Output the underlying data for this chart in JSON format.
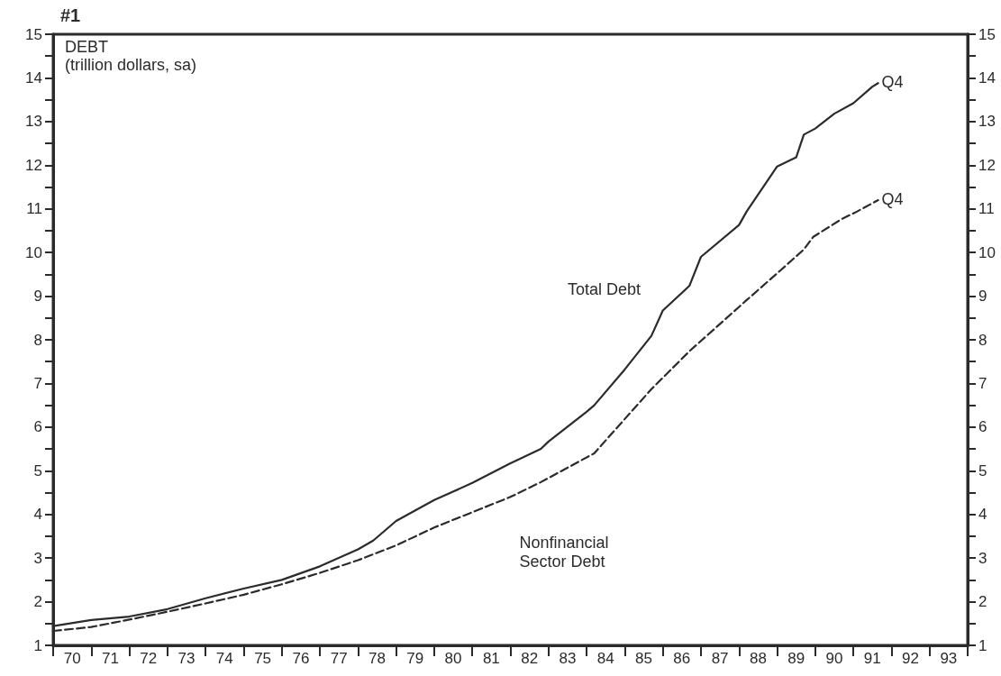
{
  "chart_data": {
    "type": "line",
    "title": "#1",
    "subtitle": "DEBT",
    "ylabel": "(trillion dollars, sa)",
    "series": [
      {
        "name": "Total Debt",
        "color": "#2b2b2b",
        "line_style": "solid",
        "x": [
          69.5,
          70.5,
          71.5,
          72.5,
          73.5,
          74.5,
          75.5,
          76.5,
          77.5,
          77.9,
          78.5,
          79.5,
          80.5,
          81.5,
          82.3,
          82.5,
          83.5,
          83.7,
          84.5,
          85.2,
          85.5,
          86.2,
          86.5,
          87.5,
          87.7,
          88.5,
          89.0,
          89.2,
          89.5,
          90.0,
          90.5,
          91.0,
          91.15
        ],
        "values": [
          1.44,
          1.58,
          1.66,
          1.83,
          2.08,
          2.3,
          2.5,
          2.81,
          3.2,
          3.4,
          3.85,
          4.33,
          4.72,
          5.17,
          5.5,
          5.67,
          6.35,
          6.5,
          7.32,
          8.09,
          8.67,
          9.24,
          9.9,
          10.63,
          10.94,
          11.97,
          12.18,
          12.7,
          12.84,
          13.18,
          13.42,
          13.8,
          13.88
        ]
      },
      {
        "name": "Nonfinancial\nSector Debt",
        "color": "#2b2b2b",
        "line_style": "dashed",
        "x": [
          69.5,
          70.5,
          71.5,
          72.5,
          73.5,
          74.5,
          75.5,
          76.5,
          77.5,
          78.5,
          79.5,
          80.5,
          81.5,
          82.3,
          83.7,
          85.2,
          86.2,
          87.7,
          88.6,
          89.2,
          89.45,
          90.2,
          90.6,
          91.15
        ],
        "values": [
          1.33,
          1.42,
          1.59,
          1.77,
          1.96,
          2.16,
          2.4,
          2.66,
          2.95,
          3.29,
          3.7,
          4.05,
          4.4,
          4.74,
          5.4,
          6.87,
          7.74,
          8.91,
          9.6,
          10.07,
          10.36,
          10.77,
          10.94,
          11.2
        ]
      }
    ],
    "annotations": [
      {
        "text": "Q4",
        "x": 91.15,
        "y": 13.88
      },
      {
        "text": "Q4",
        "x": 91.15,
        "y": 11.2
      }
    ],
    "xlim": [
      69.5,
      93.5
    ],
    "xticks": [
      {
        "value": 69.5,
        "label": null
      },
      70,
      {
        "value": 70.5,
        "label": null
      },
      71,
      {
        "value": 71.5,
        "label": null
      },
      72,
      {
        "value": 72.5,
        "label": null
      },
      73,
      {
        "value": 73.5,
        "label": null
      },
      74,
      {
        "value": 74.5,
        "label": null
      },
      75,
      {
        "value": 75.5,
        "label": null
      },
      76,
      {
        "value": 76.5,
        "label": null
      },
      77,
      {
        "value": 77.5,
        "label": null
      },
      78,
      {
        "value": 78.5,
        "label": null
      },
      79,
      {
        "value": 79.5,
        "label": null
      },
      80,
      {
        "value": 80.5,
        "label": null
      },
      81,
      {
        "value": 81.5,
        "label": null
      },
      82,
      {
        "value": 82.5,
        "label": null
      },
      83,
      {
        "value": 83.5,
        "label": null
      },
      84,
      {
        "value": 84.5,
        "label": null
      },
      85,
      {
        "value": 85.5,
        "label": null
      },
      86,
      {
        "value": 86.5,
        "label": null
      },
      87,
      {
        "value": 87.5,
        "label": null
      },
      88,
      {
        "value": 88.5,
        "label": null
      },
      89,
      {
        "value": 89.5,
        "label": null
      },
      90,
      {
        "value": 90.5,
        "label": null
      },
      91,
      {
        "value": 91.5,
        "label": null
      },
      92,
      {
        "value": 92.5,
        "label": null
      },
      93,
      {
        "value": 93.5,
        "label": null
      }
    ],
    "ylim": [
      1,
      15
    ],
    "yticks": [
      1,
      {
        "value": 1.5,
        "label": null
      },
      2,
      {
        "value": 2.5,
        "label": null
      },
      3,
      {
        "value": 3.5,
        "label": null
      },
      4,
      {
        "value": 4.5,
        "label": null
      },
      5,
      {
        "value": 5.5,
        "label": null
      },
      6,
      {
        "value": 6.5,
        "label": null
      },
      7,
      {
        "value": 7.5,
        "label": null
      },
      8,
      {
        "value": 8.5,
        "label": null
      },
      9,
      {
        "value": 9.5,
        "label": null
      },
      10,
      {
        "value": 10.5,
        "label": null
      },
      11,
      {
        "value": 11.5,
        "label": null
      },
      12,
      {
        "value": 12.5,
        "label": null
      },
      13,
      {
        "value": 13.5,
        "label": null
      },
      14,
      {
        "value": 14.5,
        "label": null
      },
      15
    ],
    "y2lim": [
      1,
      15
    ],
    "y2ticks": [
      1,
      {
        "value": 1.5,
        "label": null
      },
      2,
      {
        "value": 2.5,
        "label": null
      },
      3,
      {
        "value": 3.5,
        "label": null
      },
      4,
      {
        "value": 4.5,
        "label": null
      },
      5,
      {
        "value": 5.5,
        "label": null
      },
      6,
      {
        "value": 6.5,
        "label": null
      },
      7,
      {
        "value": 7.5,
        "label": null
      },
      8,
      {
        "value": 8.5,
        "label": null
      },
      9,
      {
        "value": 9.5,
        "label": null
      },
      10,
      {
        "value": 10.5,
        "label": null
      },
      11,
      {
        "value": 11.5,
        "label": null
      },
      12,
      {
        "value": 12.5,
        "label": null
      },
      13,
      {
        "value": 13.5,
        "label": null
      },
      14,
      {
        "value": 14.5,
        "label": null
      },
      15
    ],
    "grid": false,
    "legend": false,
    "marker": "none"
  }
}
